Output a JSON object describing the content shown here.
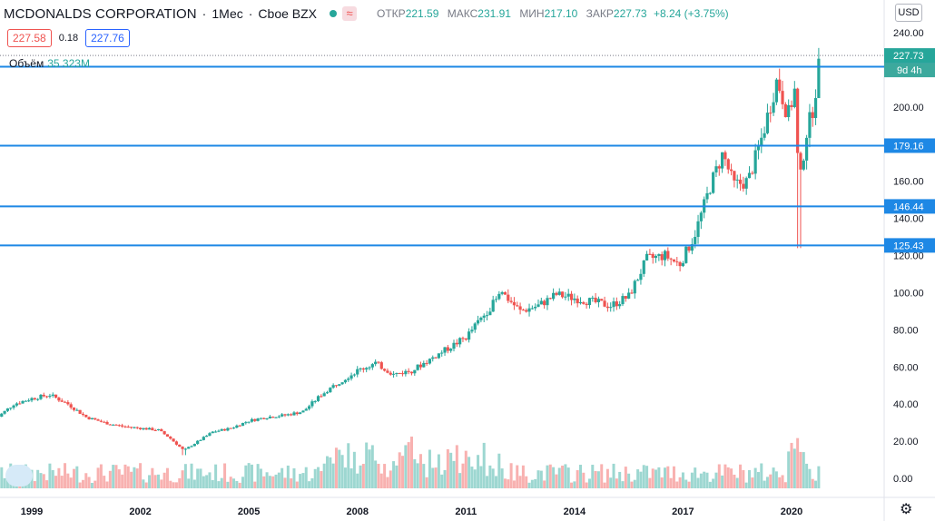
{
  "header": {
    "symbol": "MCDONALDS CORPORATION",
    "interval": "1Мес",
    "exchange": "Cboe BZX",
    "wave_icon": "≈",
    "open_label": "ОТКР",
    "open": "221.59",
    "high_label": "МАКС",
    "high": "231.91",
    "low_label": "МИН",
    "low": "217.10",
    "close_label": "ЗАКР",
    "close": "227.73",
    "change": "+8.24 (+3.75%)"
  },
  "quote": {
    "sell": "227.58",
    "spread": "0.18",
    "buy": "227.76"
  },
  "volume": {
    "label": "Объём",
    "value": "35.323M"
  },
  "currency_button": "USD",
  "settings_icon": "⚙",
  "colors": {
    "up": "#26a69a",
    "down": "#ef5350",
    "line": "#1e88e5",
    "text": "#131722"
  },
  "chart_data": {
    "type": "candlestick",
    "y_ticks": [
      "240.00",
      "220.00",
      "200.00",
      "180.00",
      "160.00",
      "140.00",
      "120.00",
      "100.00",
      "80.00",
      "60.00",
      "40.00",
      "20.00",
      "0.00"
    ],
    "x_ticks": [
      "1999",
      "2002",
      "2005",
      "2008",
      "2011",
      "2014",
      "2017",
      "2020"
    ],
    "ylim": [
      0,
      240
    ],
    "horizontal_lines": [
      {
        "value": 221.65,
        "label": "221.65"
      },
      {
        "value": 179.16,
        "label": "179.16"
      },
      {
        "value": 146.44,
        "label": "146.44"
      },
      {
        "value": 125.43,
        "label": "125.43"
      }
    ],
    "last_price": {
      "value": 227.73,
      "label": "227.73",
      "countdown": "9d 4h"
    },
    "series_points": [
      [
        1998.0,
        32
      ],
      [
        1998.5,
        40
      ],
      [
        1999.0,
        43
      ],
      [
        1999.5,
        45
      ],
      [
        2000.0,
        40
      ],
      [
        2000.5,
        33
      ],
      [
        2001.0,
        30
      ],
      [
        2001.5,
        28
      ],
      [
        2002.0,
        27
      ],
      [
        2002.5,
        26
      ],
      [
        2002.8,
        22
      ],
      [
        2003.2,
        15
      ],
      [
        2003.6,
        20
      ],
      [
        2004.0,
        25
      ],
      [
        2004.5,
        27
      ],
      [
        2005.0,
        31
      ],
      [
        2005.5,
        33
      ],
      [
        2006.0,
        34
      ],
      [
        2006.5,
        36
      ],
      [
        2007.0,
        45
      ],
      [
        2007.5,
        52
      ],
      [
        2008.0,
        58
      ],
      [
        2008.5,
        62
      ],
      [
        2009.0,
        56
      ],
      [
        2009.5,
        58
      ],
      [
        2010.0,
        64
      ],
      [
        2010.5,
        70
      ],
      [
        2011.0,
        76
      ],
      [
        2011.5,
        88
      ],
      [
        2012.0,
        100
      ],
      [
        2012.5,
        90
      ],
      [
        2013.0,
        93
      ],
      [
        2013.5,
        99
      ],
      [
        2014.0,
        97
      ],
      [
        2014.5,
        95
      ],
      [
        2015.0,
        93
      ],
      [
        2015.5,
        98
      ],
      [
        2016.0,
        118
      ],
      [
        2016.5,
        120
      ],
      [
        2016.9,
        115
      ],
      [
        2017.3,
        130
      ],
      [
        2017.8,
        160
      ],
      [
        2018.1,
        175
      ],
      [
        2018.4,
        158
      ],
      [
        2018.8,
        160
      ],
      [
        2019.2,
        185
      ],
      [
        2019.6,
        215
      ],
      [
        2019.9,
        195
      ],
      [
        2020.1,
        210
      ],
      [
        2020.2,
        155
      ],
      [
        2020.4,
        185
      ],
      [
        2020.6,
        200
      ],
      [
        2020.8,
        227.73
      ]
    ],
    "volume_max_label": "20.00"
  }
}
